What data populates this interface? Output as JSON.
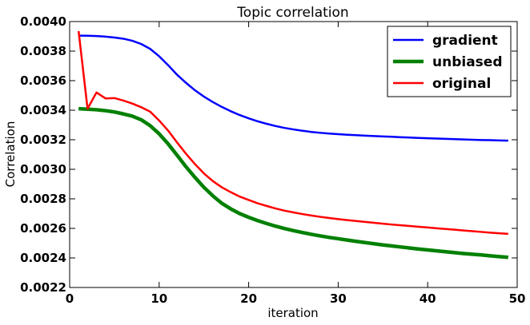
{
  "chart_data": {
    "type": "line",
    "title": "Topic correlation",
    "xlabel": "iteration",
    "ylabel": "Correlation",
    "xlim": [
      0,
      50
    ],
    "ylim": [
      0.0022,
      0.004
    ],
    "xticks": [
      "0",
      "10",
      "20",
      "30",
      "40",
      "50"
    ],
    "yticks": [
      "0.0022",
      "0.0024",
      "0.0026",
      "0.0028",
      "0.0030",
      "0.0032",
      "0.0034",
      "0.0036",
      "0.0038",
      "0.0040"
    ],
    "grid": false,
    "legend_position": "top-right",
    "x": [
      1,
      2,
      3,
      4,
      5,
      6,
      7,
      8,
      9,
      10,
      11,
      12,
      13,
      14,
      15,
      16,
      17,
      18,
      19,
      20,
      21,
      22,
      23,
      24,
      25,
      26,
      27,
      28,
      29,
      30,
      31,
      32,
      33,
      34,
      35,
      36,
      37,
      38,
      39,
      40,
      41,
      42,
      43,
      44,
      45,
      46,
      47,
      48,
      49
    ],
    "series": [
      {
        "name": "gradient",
        "color": "#0000ff",
        "width": 2.5,
        "values": [
          0.003905,
          0.003904,
          0.003902,
          0.003898,
          0.003892,
          0.003884,
          0.00387,
          0.003848,
          0.003815,
          0.003765,
          0.003705,
          0.00364,
          0.003585,
          0.003535,
          0.003492,
          0.003455,
          0.003422,
          0.003393,
          0.003367,
          0.003345,
          0.003325,
          0.003308,
          0.003293,
          0.00328,
          0.00327,
          0.003261,
          0.003253,
          0.003247,
          0.003242,
          0.003238,
          0.003234,
          0.003231,
          0.003228,
          0.003225,
          0.003222,
          0.00322,
          0.003217,
          0.003215,
          0.003212,
          0.00321,
          0.003208,
          0.003206,
          0.003204,
          0.003202,
          0.0032,
          0.003198,
          0.003197,
          0.003195,
          0.003194
        ]
      },
      {
        "name": "unbiased",
        "color": "#008000",
        "width": 4.5,
        "values": [
          0.00341,
          0.003407,
          0.003403,
          0.003397,
          0.003388,
          0.003375,
          0.00336,
          0.003335,
          0.003295,
          0.00324,
          0.003172,
          0.003095,
          0.003017,
          0.002945,
          0.002878,
          0.00282,
          0.00277,
          0.002732,
          0.0027,
          0.002675,
          0.002653,
          0.002633,
          0.002615,
          0.002599,
          0.002585,
          0.002572,
          0.00256,
          0.002549,
          0.002539,
          0.00253,
          0.002521,
          0.002512,
          0.002504,
          0.002496,
          0.002488,
          0.002481,
          0.002474,
          0.002467,
          0.00246,
          0.002454,
          0.002448,
          0.002442,
          0.002436,
          0.00243,
          0.002425,
          0.00242,
          0.002414,
          0.002409,
          0.002404
        ]
      },
      {
        "name": "original",
        "color": "#ff0000",
        "width": 2.5,
        "values": [
          0.003935,
          0.00341,
          0.00352,
          0.00348,
          0.003482,
          0.003465,
          0.003445,
          0.00342,
          0.00339,
          0.00333,
          0.003262,
          0.003182,
          0.003105,
          0.003035,
          0.002972,
          0.00292,
          0.002878,
          0.002845,
          0.002815,
          0.002792,
          0.00277,
          0.002752,
          0.002735,
          0.00272,
          0.002708,
          0.002697,
          0.002687,
          0.002678,
          0.00267,
          0.002663,
          0.002656,
          0.00265,
          0.002644,
          0.002638,
          0.002632,
          0.002626,
          0.002621,
          0.002616,
          0.002611,
          0.002606,
          0.002601,
          0.002596,
          0.002591,
          0.002586,
          0.002581,
          0.002576,
          0.002571,
          0.002567,
          0.002563
        ]
      }
    ]
  }
}
